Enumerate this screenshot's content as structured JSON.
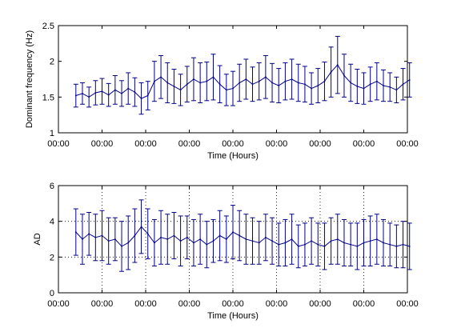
{
  "chart_data": [
    {
      "type": "line",
      "style": "errorbar",
      "color": "#00008b",
      "xlabel": "Time (Hours)",
      "ylabel": "Dominant frequency (Hz)",
      "ylim": [
        1,
        2.5
      ],
      "yticks": [
        1,
        1.5,
        2,
        2.5
      ],
      "ytick_labels": [
        "1",
        "1.5",
        "2",
        "2.5"
      ],
      "xtick_labels": [
        "00:00",
        "00:00",
        "00:00",
        "00:00",
        "00:00",
        "00:00",
        "00:00",
        "00:00",
        "00:00"
      ],
      "grid": false,
      "series": [
        {
          "x": [
            0.4,
            0.55,
            0.7,
            0.85,
            1.0,
            1.15,
            1.3,
            1.45,
            1.6,
            1.75,
            1.9,
            2.05,
            2.2,
            2.35,
            2.5,
            2.65,
            2.8,
            2.95,
            3.1,
            3.25,
            3.4,
            3.55,
            3.7,
            3.85,
            4.0,
            4.15,
            4.3,
            4.45,
            4.6,
            4.75,
            4.9,
            5.05,
            5.2,
            5.35,
            5.5,
            5.65,
            5.8,
            5.95,
            6.1,
            6.25,
            6.4,
            6.55,
            6.7,
            6.85,
            7.0,
            7.15,
            7.3,
            7.45,
            7.6,
            7.75,
            7.9,
            8.05
          ],
          "y": [
            1.52,
            1.55,
            1.5,
            1.56,
            1.58,
            1.53,
            1.6,
            1.55,
            1.62,
            1.57,
            1.48,
            1.52,
            1.72,
            1.78,
            1.7,
            1.65,
            1.6,
            1.68,
            1.75,
            1.7,
            1.72,
            1.78,
            1.68,
            1.6,
            1.62,
            1.7,
            1.75,
            1.68,
            1.72,
            1.78,
            1.7,
            1.66,
            1.72,
            1.75,
            1.7,
            1.68,
            1.62,
            1.66,
            1.72,
            1.85,
            1.95,
            1.8,
            1.7,
            1.65,
            1.62,
            1.68,
            1.72,
            1.66,
            1.64,
            1.6,
            1.68,
            1.74
          ],
          "err": [
            0.16,
            0.15,
            0.14,
            0.17,
            0.18,
            0.16,
            0.2,
            0.18,
            0.22,
            0.2,
            0.22,
            0.2,
            0.28,
            0.3,
            0.28,
            0.24,
            0.22,
            0.25,
            0.3,
            0.28,
            0.27,
            0.32,
            0.26,
            0.22,
            0.24,
            0.26,
            0.28,
            0.24,
            0.26,
            0.3,
            0.27,
            0.24,
            0.26,
            0.28,
            0.26,
            0.25,
            0.22,
            0.24,
            0.27,
            0.35,
            0.4,
            0.3,
            0.26,
            0.24,
            0.22,
            0.24,
            0.26,
            0.22,
            0.2,
            0.18,
            0.22,
            0.24
          ]
        }
      ]
    },
    {
      "type": "line",
      "style": "errorbar",
      "color": "#00008b",
      "xlabel": "Time (Hours)",
      "ylabel": "AD",
      "ylim": [
        0,
        6
      ],
      "yticks": [
        0,
        2,
        4,
        6
      ],
      "ytick_labels": [
        "0",
        "2",
        "4",
        "6"
      ],
      "xtick_labels": [
        "00:00",
        "00:00",
        "00:00",
        "00:00",
        "00:00",
        "00:00",
        "00:00",
        "00:00",
        "00:00"
      ],
      "grid": true,
      "series": [
        {
          "x": [
            0.4,
            0.55,
            0.7,
            0.85,
            1.0,
            1.15,
            1.3,
            1.45,
            1.6,
            1.75,
            1.9,
            2.05,
            2.2,
            2.35,
            2.5,
            2.65,
            2.8,
            2.95,
            3.1,
            3.25,
            3.4,
            3.55,
            3.7,
            3.85,
            4.0,
            4.15,
            4.3,
            4.45,
            4.6,
            4.75,
            4.9,
            5.05,
            5.2,
            5.35,
            5.5,
            5.65,
            5.8,
            5.95,
            6.1,
            6.25,
            6.4,
            6.55,
            6.7,
            6.85,
            7.0,
            7.15,
            7.3,
            7.45,
            7.6,
            7.75,
            7.9,
            8.05
          ],
          "y": [
            3.4,
            3.0,
            3.3,
            3.1,
            3.2,
            2.9,
            3.0,
            2.6,
            2.8,
            3.2,
            3.7,
            3.3,
            2.8,
            3.1,
            3.0,
            3.2,
            2.9,
            3.1,
            2.8,
            3.0,
            2.7,
            2.9,
            3.2,
            3.0,
            3.4,
            3.2,
            3.0,
            2.9,
            2.8,
            3.1,
            2.9,
            2.7,
            2.8,
            3.0,
            2.6,
            2.7,
            2.9,
            2.7,
            2.6,
            2.9,
            3.0,
            2.8,
            2.7,
            2.6,
            2.8,
            2.9,
            3.0,
            2.8,
            2.7,
            2.6,
            2.7,
            2.6
          ],
          "err": [
            1.3,
            1.4,
            1.2,
            1.3,
            1.4,
            1.3,
            1.2,
            1.4,
            1.5,
            1.5,
            1.5,
            1.4,
            1.3,
            1.5,
            1.4,
            1.3,
            1.4,
            1.2,
            1.3,
            1.4,
            1.3,
            1.2,
            1.4,
            1.3,
            1.5,
            1.4,
            1.4,
            1.3,
            1.2,
            1.3,
            1.3,
            1.2,
            1.3,
            1.4,
            1.2,
            1.2,
            1.3,
            1.2,
            1.3,
            1.3,
            1.4,
            1.3,
            1.2,
            1.3,
            1.3,
            1.4,
            1.4,
            1.3,
            1.2,
            1.2,
            1.3,
            1.3
          ]
        }
      ]
    }
  ]
}
